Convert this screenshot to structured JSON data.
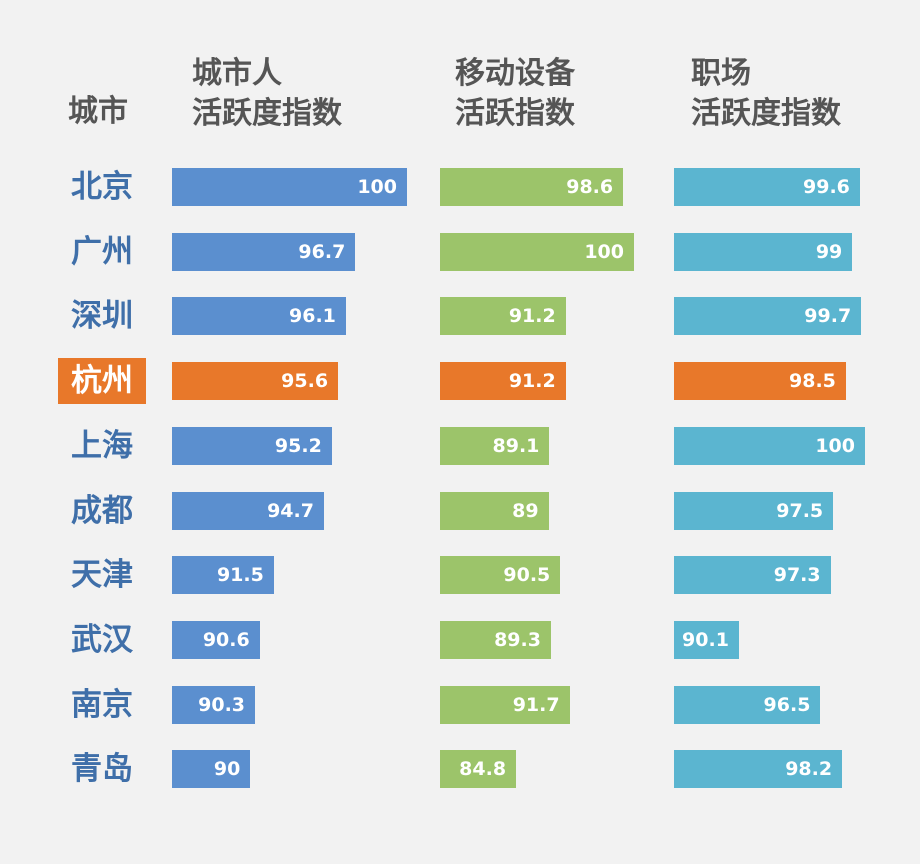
{
  "chart_data": {
    "type": "bar",
    "category_header": "城市",
    "categories": [
      "北京",
      "广州",
      "深圳",
      "杭州",
      "上海",
      "成都",
      "天津",
      "武汉",
      "南京",
      "青岛"
    ],
    "highlight": {
      "category": "杭州",
      "color": "#e8782a"
    },
    "series": [
      {
        "name": "城市人\n活跃度指数",
        "color": "#5b8fcf",
        "xlim": [
          85,
          100
        ],
        "values": [
          100,
          96.7,
          96.1,
          95.6,
          95.2,
          94.7,
          91.5,
          90.6,
          90.3,
          90
        ]
      },
      {
        "name": "移动设备\n活跃指数",
        "color": "#9cc46a",
        "xlim": [
          75,
          100
        ],
        "values": [
          98.6,
          100,
          91.2,
          91.2,
          89.1,
          89,
          90.5,
          89.3,
          91.7,
          84.8
        ]
      },
      {
        "name": "职场\n活跃度指数",
        "color": "#5bb5d0",
        "xlim": [
          85,
          100
        ],
        "values": [
          99.6,
          99,
          99.7,
          98.5,
          100,
          97.5,
          97.3,
          90.1,
          96.5,
          98.2
        ]
      }
    ]
  }
}
